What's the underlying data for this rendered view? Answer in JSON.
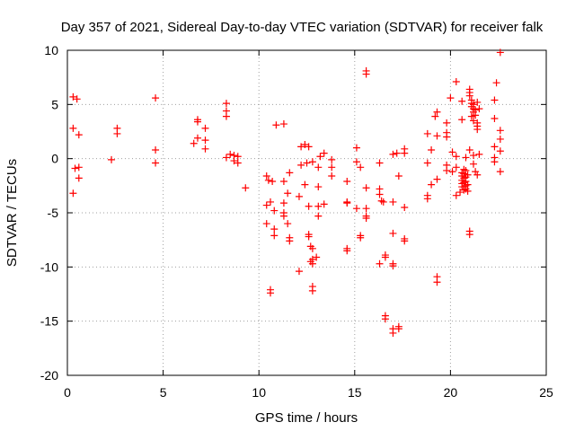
{
  "chart_data": {
    "type": "scatter",
    "title": "Day 357 of 2021, Sidereal Day-to-day VTEC variation (SDTVAR) for receiver falk",
    "xlabel": "GPS time / hours",
    "ylabel": "SDTVAR / TECUs",
    "xlim": [
      0,
      25
    ],
    "ylim": [
      -20,
      10
    ],
    "xticks": [
      0,
      5,
      10,
      15,
      20,
      25
    ],
    "yticks": [
      10,
      5,
      0,
      -5,
      -10,
      -15,
      -20
    ],
    "xtick_labels": [
      "0",
      "5",
      "10",
      "15",
      "20",
      "25"
    ],
    "ytick_labels": [
      "10",
      "5",
      "0",
      "-5",
      "-10",
      "-15",
      "-20"
    ],
    "grid": true,
    "marker": "plus",
    "color": "#ff0000",
    "series": [
      {
        "name": "SDTVAR",
        "points": [
          [
            0.3,
            5.7
          ],
          [
            0.5,
            5.5
          ],
          [
            0.3,
            2.8
          ],
          [
            0.6,
            2.2
          ],
          [
            0.4,
            -0.9
          ],
          [
            0.6,
            -0.8
          ],
          [
            0.6,
            -1.8
          ],
          [
            0.3,
            -3.2
          ],
          [
            2.3,
            -0.1
          ],
          [
            2.6,
            2.8
          ],
          [
            2.6,
            2.3
          ],
          [
            4.6,
            5.6
          ],
          [
            4.6,
            0.8
          ],
          [
            4.6,
            -0.4
          ],
          [
            6.6,
            1.4
          ],
          [
            6.8,
            3.6
          ],
          [
            6.8,
            3.4
          ],
          [
            6.8,
            1.9
          ],
          [
            7.2,
            2.8
          ],
          [
            7.2,
            1.7
          ],
          [
            7.2,
            0.9
          ],
          [
            8.3,
            5.1
          ],
          [
            8.3,
            4.4
          ],
          [
            8.3,
            3.9
          ],
          [
            8.3,
            0.1
          ],
          [
            8.5,
            0.4
          ],
          [
            8.7,
            0.3
          ],
          [
            8.9,
            0.2
          ],
          [
            8.7,
            -0.2
          ],
          [
            8.9,
            -0.4
          ],
          [
            9.3,
            -2.7
          ],
          [
            10.4,
            -1.6
          ],
          [
            10.5,
            -2.0
          ],
          [
            10.7,
            -2.1
          ],
          [
            10.4,
            -4.3
          ],
          [
            10.6,
            -4.0
          ],
          [
            10.4,
            -6.0
          ],
          [
            10.8,
            -4.8
          ],
          [
            10.8,
            -6.5
          ],
          [
            10.8,
            -7.1
          ],
          [
            10.6,
            -12.1
          ],
          [
            10.6,
            -12.4
          ],
          [
            10.9,
            3.1
          ],
          [
            11.3,
            3.2
          ],
          [
            11.3,
            -2.1
          ],
          [
            11.5,
            -3.2
          ],
          [
            11.3,
            -4.1
          ],
          [
            11.3,
            -5.0
          ],
          [
            11.3,
            -5.3
          ],
          [
            11.5,
            -6.0
          ],
          [
            11.6,
            -7.3
          ],
          [
            11.6,
            -7.6
          ],
          [
            11.6,
            -1.3
          ],
          [
            12.2,
            1.1
          ],
          [
            12.4,
            1.3
          ],
          [
            12.6,
            1.1
          ],
          [
            12.2,
            -0.6
          ],
          [
            12.5,
            -0.4
          ],
          [
            12.8,
            -0.3
          ],
          [
            12.4,
            -2.4
          ],
          [
            12.1,
            -3.5
          ],
          [
            12.1,
            -10.4
          ],
          [
            12.6,
            -4.4
          ],
          [
            12.6,
            -7.0
          ],
          [
            12.6,
            -7.2
          ],
          [
            12.7,
            -8.1
          ],
          [
            12.8,
            -8.3
          ],
          [
            12.7,
            -9.5
          ],
          [
            12.8,
            -9.7
          ],
          [
            12.8,
            -9.3
          ],
          [
            13.0,
            -9.1
          ],
          [
            12.8,
            -11.8
          ],
          [
            12.8,
            -12.2
          ],
          [
            13.2,
            0.2
          ],
          [
            13.4,
            0.5
          ],
          [
            13.1,
            -0.8
          ],
          [
            13.1,
            -2.6
          ],
          [
            13.1,
            -4.4
          ],
          [
            13.4,
            -4.2
          ],
          [
            13.1,
            -5.3
          ],
          [
            13.8,
            -0.1
          ],
          [
            13.8,
            -0.8
          ],
          [
            13.8,
            -1.6
          ],
          [
            14.6,
            -2.1
          ],
          [
            14.6,
            -4.0
          ],
          [
            14.6,
            -4.1
          ],
          [
            14.6,
            -8.3
          ],
          [
            14.6,
            -8.5
          ],
          [
            15.1,
            1.0
          ],
          [
            15.1,
            -0.3
          ],
          [
            15.3,
            -0.8
          ],
          [
            15.1,
            -4.6
          ],
          [
            15.3,
            -7.3
          ],
          [
            15.3,
            -7.1
          ],
          [
            15.6,
            -4.6
          ],
          [
            15.6,
            -5.3
          ],
          [
            15.6,
            -5.5
          ],
          [
            15.6,
            -2.7
          ],
          [
            15.6,
            7.8
          ],
          [
            15.6,
            8.1
          ],
          [
            16.3,
            -0.4
          ],
          [
            16.3,
            -2.8
          ],
          [
            16.3,
            -3.3
          ],
          [
            16.4,
            -3.9
          ],
          [
            16.5,
            -4.0
          ],
          [
            16.3,
            -9.7
          ],
          [
            16.6,
            -8.9
          ],
          [
            16.6,
            -9.1
          ],
          [
            16.6,
            -14.5
          ],
          [
            16.6,
            -14.8
          ],
          [
            17.0,
            0.4
          ],
          [
            17.2,
            0.5
          ],
          [
            17.0,
            -4.0
          ],
          [
            17.0,
            -6.9
          ],
          [
            17.0,
            -9.7
          ],
          [
            17.0,
            -9.9
          ],
          [
            17.0,
            -15.7
          ],
          [
            17.0,
            -16.1
          ],
          [
            17.3,
            -15.7
          ],
          [
            17.3,
            -15.5
          ],
          [
            17.3,
            -1.6
          ],
          [
            17.6,
            0.9
          ],
          [
            17.6,
            0.5
          ],
          [
            17.6,
            -4.5
          ],
          [
            17.6,
            -7.4
          ],
          [
            17.6,
            -7.6
          ],
          [
            18.8,
            2.3
          ],
          [
            18.8,
            -0.4
          ],
          [
            18.8,
            -3.4
          ],
          [
            18.8,
            -3.7
          ],
          [
            19.0,
            0.8
          ],
          [
            19.0,
            -2.4
          ],
          [
            19.2,
            3.9
          ],
          [
            19.3,
            4.3
          ],
          [
            19.3,
            2.1
          ],
          [
            19.3,
            -1.9
          ],
          [
            19.3,
            -10.9
          ],
          [
            19.3,
            -11.4
          ],
          [
            19.8,
            3.3
          ],
          [
            19.8,
            2.4
          ],
          [
            19.8,
            2.0
          ],
          [
            19.8,
            -0.6
          ],
          [
            19.8,
            -1.1
          ],
          [
            20.1,
            0.6
          ],
          [
            20.1,
            -1.2
          ],
          [
            20.3,
            7.1
          ],
          [
            20.3,
            0.2
          ],
          [
            20.3,
            -0.8
          ],
          [
            20.3,
            -3.4
          ],
          [
            20.5,
            -3.1
          ],
          [
            20.0,
            5.6
          ],
          [
            20.6,
            -1.3
          ],
          [
            20.6,
            -1.6
          ],
          [
            20.6,
            -2.0
          ],
          [
            20.6,
            -2.3
          ],
          [
            20.6,
            -2.6
          ],
          [
            20.7,
            -1.0
          ],
          [
            20.7,
            -1.4
          ],
          [
            20.7,
            -1.8
          ],
          [
            20.7,
            -2.2
          ],
          [
            20.7,
            -2.6
          ],
          [
            20.7,
            -2.9
          ],
          [
            20.8,
            -1.1
          ],
          [
            20.8,
            -1.7
          ],
          [
            20.8,
            -2.1
          ],
          [
            20.8,
            -2.5
          ],
          [
            20.8,
            -2.8
          ],
          [
            20.9,
            -1.5
          ],
          [
            20.9,
            -2.4
          ],
          [
            20.9,
            -3.0
          ],
          [
            20.6,
            5.3
          ],
          [
            20.6,
            3.6
          ],
          [
            20.8,
            0.1
          ],
          [
            21.0,
            6.4
          ],
          [
            21.0,
            6.1
          ],
          [
            21.0,
            5.8
          ],
          [
            21.1,
            5.4
          ],
          [
            21.1,
            5.1
          ],
          [
            21.1,
            4.8
          ],
          [
            21.2,
            5.0
          ],
          [
            21.2,
            4.6
          ],
          [
            21.2,
            4.3
          ],
          [
            21.3,
            4.5
          ],
          [
            21.3,
            4.0
          ],
          [
            21.1,
            3.9
          ],
          [
            21.2,
            3.5
          ],
          [
            21.4,
            3.3
          ],
          [
            21.4,
            3.0
          ],
          [
            21.4,
            2.7
          ],
          [
            21.0,
            0.8
          ],
          [
            21.2,
            0.3
          ],
          [
            21.2,
            -0.5
          ],
          [
            21.3,
            -1.2
          ],
          [
            21.4,
            -1.5
          ],
          [
            21.4,
            5.2
          ],
          [
            21.5,
            4.6
          ],
          [
            21.5,
            0.4
          ],
          [
            21.0,
            -6.7
          ],
          [
            21.0,
            -7.0
          ],
          [
            22.3,
            5.4
          ],
          [
            22.3,
            3.7
          ],
          [
            22.3,
            1.1
          ],
          [
            22.3,
            0.1
          ],
          [
            22.3,
            -0.3
          ],
          [
            22.4,
            7.0
          ],
          [
            22.6,
            9.8
          ],
          [
            22.6,
            2.6
          ],
          [
            22.6,
            1.8
          ],
          [
            22.6,
            0.7
          ],
          [
            22.6,
            -1.2
          ]
        ]
      }
    ]
  }
}
